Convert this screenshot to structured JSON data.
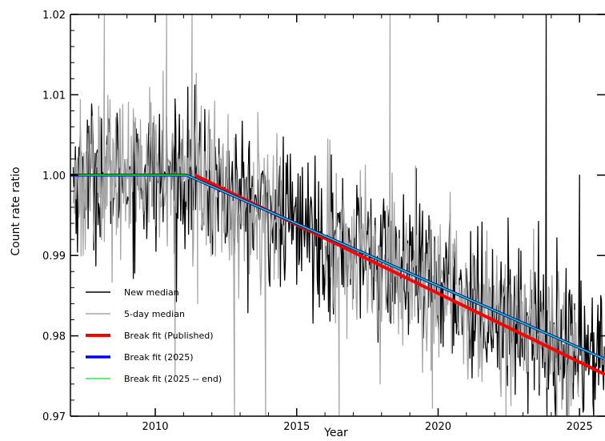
{
  "chart_data": {
    "type": "line",
    "title": "",
    "xlabel": "Year",
    "ylabel": "Count rate ratio",
    "xlim": [
      2007.0,
      2025.9
    ],
    "ylim": [
      0.97,
      1.02
    ],
    "grid": false,
    "legend_position": "bottom-left",
    "x_ticks": [
      2010,
      2015,
      2020,
      2025
    ],
    "y_ticks": [
      0.97,
      0.98,
      0.99,
      1.0,
      1.01,
      1.02
    ],
    "x_tick_labels": [
      "2010",
      "2015",
      "2020",
      "2025"
    ],
    "y_tick_labels": [
      "0.97",
      "0.98",
      "0.99",
      "1.00",
      "1.01",
      "1.02"
    ],
    "series": [
      {
        "name": "New median",
        "kind": "noisy",
        "color": "#000000",
        "x_range": [
          2007.1,
          2025.9
        ],
        "noise_center": "break_fit_2025",
        "noise_sd": 0.0045,
        "spikes": [
          {
            "x": 2023.82,
            "y": 1.02
          },
          {
            "x": 2023.85,
            "y": 0.97
          },
          {
            "x": 2025.0,
            "y": 1.0
          },
          {
            "x": 2025.5,
            "y": 0.97
          }
        ]
      },
      {
        "name": "5-day median",
        "kind": "noisy",
        "color": "#a6a6a6",
        "x_range": [
          2007.1,
          2025.0
        ],
        "gaps": [
          [
            2014.6,
            2016.0
          ]
        ],
        "noise_center": "break_fit_2025",
        "noise_sd": 0.005,
        "spikes": [
          {
            "x": 2008.2,
            "y": 1.02
          },
          {
            "x": 2010.4,
            "y": 1.02
          },
          {
            "x": 2010.7,
            "y": 0.975
          },
          {
            "x": 2011.3,
            "y": 1.02
          },
          {
            "x": 2011.5,
            "y": 0.984
          },
          {
            "x": 2012.8,
            "y": 0.97
          },
          {
            "x": 2013.9,
            "y": 0.97
          },
          {
            "x": 2016.5,
            "y": 0.97
          },
          {
            "x": 2018.3,
            "y": 1.02
          },
          {
            "x": 2019.8,
            "y": 0.971
          },
          {
            "x": 2022.4,
            "y": 0.97
          },
          {
            "x": 2024.2,
            "y": 0.97
          }
        ]
      },
      {
        "name": "Break fit (Published)",
        "kind": "line",
        "color": "#ff0000",
        "width": 4,
        "x": [
          2011.4,
          2025.9
        ],
        "y": [
          1.0,
          0.9752
        ]
      },
      {
        "name": "Break fit (2025)",
        "kind": "line",
        "color": "#0000ff",
        "width": 3.5,
        "x": [
          2007.0,
          2011.1,
          2025.9
        ],
        "y": [
          1.0,
          1.0,
          0.9771
        ]
      },
      {
        "name": "Break fit (2025 -- end)",
        "kind": "line",
        "color": "#22ee44",
        "width": 1.5,
        "x": [
          2007.0,
          2011.1,
          2025.9
        ],
        "y": [
          1.0,
          1.0,
          0.9771
        ]
      }
    ]
  }
}
